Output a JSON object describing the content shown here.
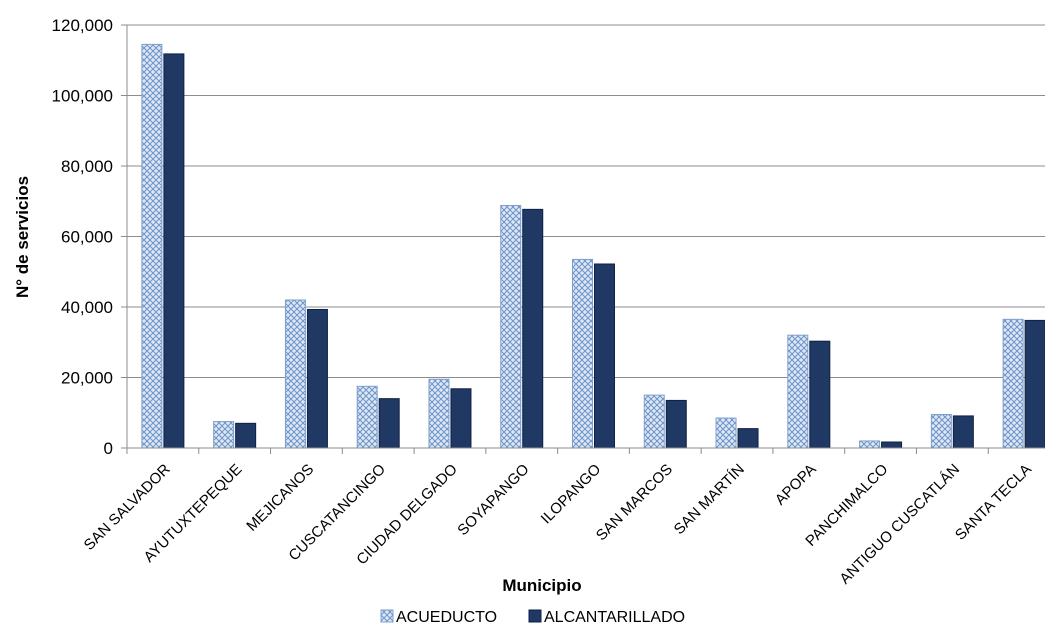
{
  "chart_data": {
    "type": "bar",
    "title": "",
    "xlabel": "Municipio",
    "ylabel": "N° de servicios",
    "ylim": [
      0,
      120000
    ],
    "yticks": [
      0,
      20000,
      40000,
      60000,
      80000,
      100000,
      120000
    ],
    "ytick_labels": [
      "0",
      "20,000",
      "40,000",
      "60,000",
      "80,000",
      "100,000",
      "120,000"
    ],
    "grid": true,
    "legend_position": "bottom",
    "categories": [
      "SAN SALVADOR",
      "AYUTUXTEPEQUE",
      "MEJICANOS",
      "CUSCATANCINGO",
      "CIUDAD DELGADO",
      "SOYAPANGO",
      "ILOPANGO",
      "SAN MARCOS",
      "SAN MARTÍN",
      "APOPA",
      "PANCHIMALCO",
      "ANTIGUO CUSCATLÁN",
      "SANTA TECLA"
    ],
    "series": [
      {
        "name": "ACUEDUCTO",
        "color": "#bcd2ec",
        "pattern": "crosshatch",
        "values": [
          114500,
          7500,
          42000,
          17500,
          19500,
          68800,
          53500,
          15000,
          8500,
          32000,
          2000,
          9500,
          36500
        ]
      },
      {
        "name": "ALCANTARILLADO",
        "color": "#1f3864",
        "pattern": "solid",
        "values": [
          111800,
          7000,
          39300,
          14000,
          16800,
          67700,
          52200,
          13500,
          5500,
          30300,
          1700,
          9100,
          36200
        ]
      }
    ]
  }
}
